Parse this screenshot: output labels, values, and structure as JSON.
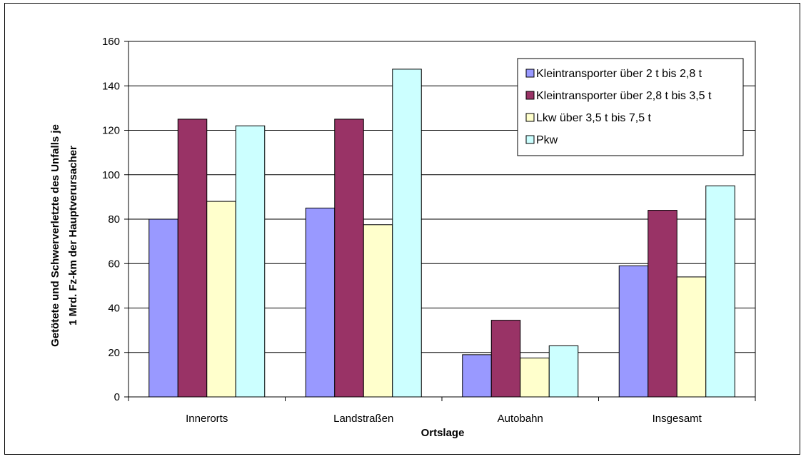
{
  "chart_data": {
    "type": "bar",
    "categories": [
      "Innerorts",
      "Landstraßen",
      "Autobahn",
      "Insgesamt"
    ],
    "series": [
      {
        "name": "Kleintransporter über 2 t bis 2,8 t",
        "color": "#9999ff",
        "values": [
          80,
          85,
          19,
          59
        ]
      },
      {
        "name": "Kleintransporter über 2,8 t bis 3,5 t",
        "color": "#993366",
        "values": [
          125,
          125,
          34.5,
          84
        ]
      },
      {
        "name": "Lkw über 3,5 t bis 7,5 t",
        "color": "#ffffcc",
        "values": [
          88,
          77.5,
          17.5,
          54
        ]
      },
      {
        "name": "Pkw",
        "color": "#ccffff",
        "values": [
          122,
          147.5,
          23,
          95
        ]
      }
    ],
    "xlabel": "Ortslage",
    "ylabel": [
      "Getötete und Schwerverletzte des Unfalls je",
      "1 Mrd. Fz-km der Hauptverursacher"
    ],
    "ylim": [
      0,
      160
    ],
    "yticks": [
      0,
      20,
      40,
      60,
      80,
      100,
      120,
      140,
      160
    ],
    "legend": "top-right",
    "grid": "horizontal"
  }
}
